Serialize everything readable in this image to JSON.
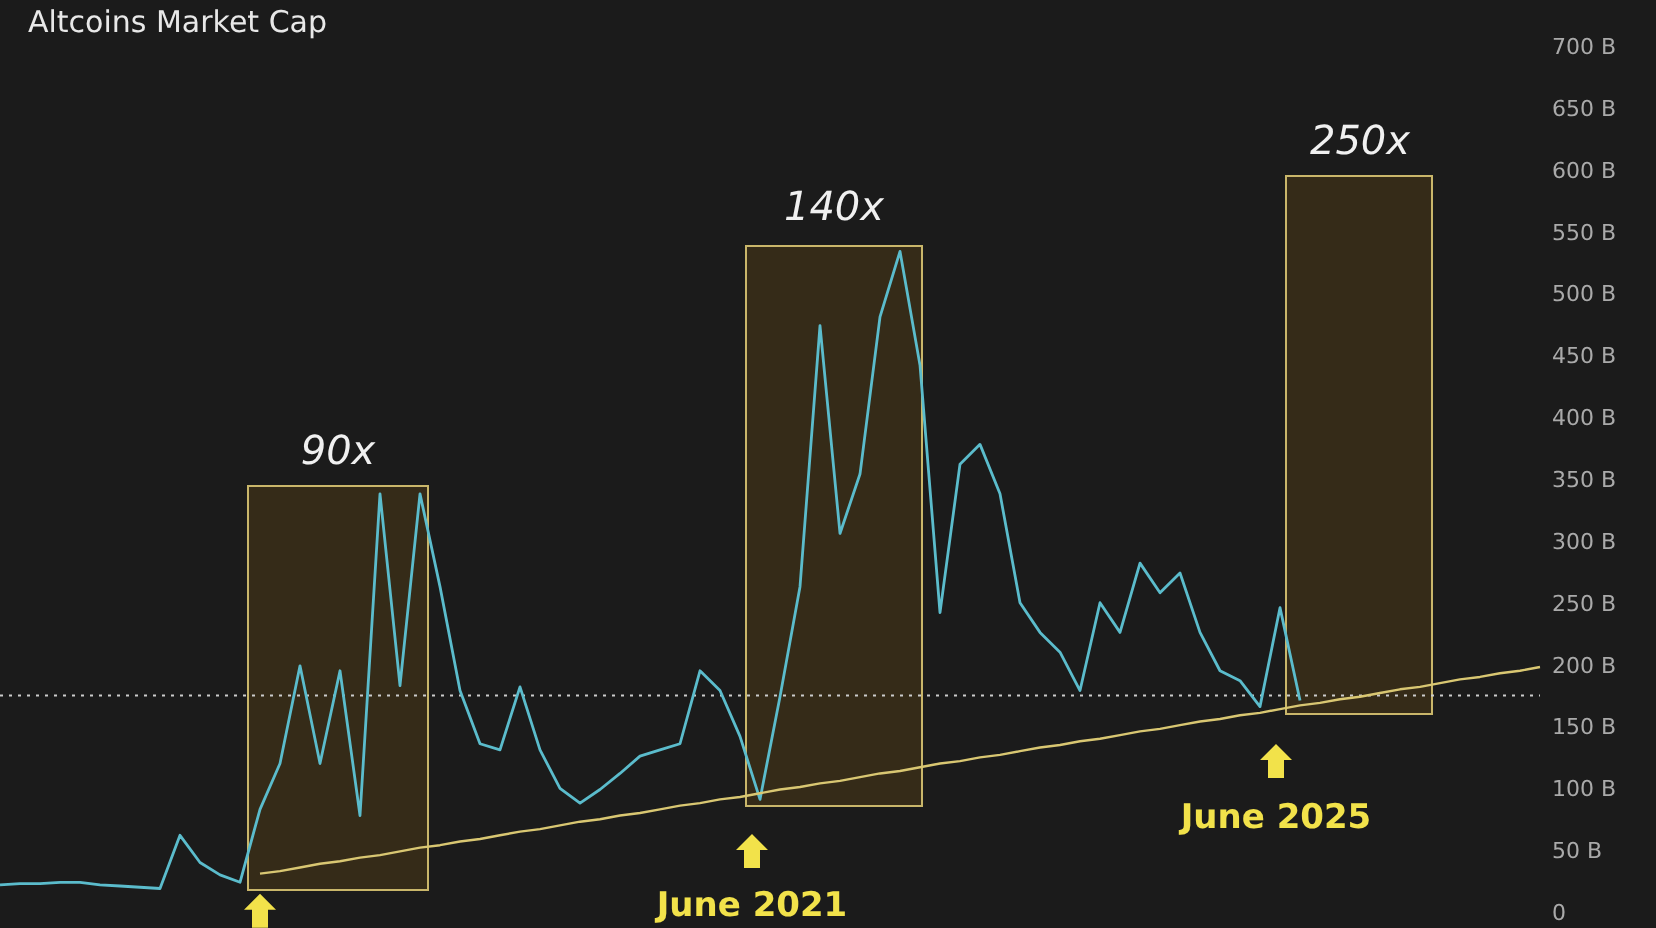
{
  "chart_data": {
    "type": "line",
    "title": "Altcoins Market Cap",
    "categories": [
      null,
      null,
      null,
      null,
      null,
      null,
      null,
      null,
      null,
      null,
      null,
      null,
      null,
      null,
      null,
      null,
      null,
      null,
      null,
      null,
      null,
      null,
      null,
      null,
      null,
      null,
      null,
      null,
      null,
      null,
      null,
      null,
      null,
      null,
      null,
      null,
      null,
      null,
      null,
      null,
      null,
      null,
      null,
      null,
      null,
      null,
      null,
      null,
      null,
      null,
      null,
      null,
      null,
      null,
      null,
      null,
      null,
      null,
      null,
      null,
      null,
      null,
      null,
      null,
      null,
      null,
      null,
      null,
      null,
      null,
      null,
      null,
      null,
      null,
      null,
      null,
      null,
      null
    ],
    "series": [
      {
        "color": "#5bbccc",
        "values": [
          22,
          23,
          23,
          24,
          24,
          22,
          21,
          20,
          19,
          62,
          40,
          30,
          24,
          83,
          120,
          199,
          120,
          195,
          78,
          338,
          183,
          338,
          263,
          179,
          136,
          131,
          182,
          131,
          100,
          88,
          99,
          112,
          126,
          131,
          136,
          195,
          179,
          142,
          91,
          174,
          263,
          474,
          306,
          354,
          481,
          534,
          442,
          242,
          362,
          378,
          338,
          250,
          226,
          210,
          179,
          250,
          226,
          282,
          258,
          274,
          226,
          195,
          187,
          166,
          246,
          171,
          null,
          null,
          null,
          null,
          null,
          null,
          null,
          null,
          null,
          null,
          null,
          null
        ]
      },
      {
        "color": "#d9c772",
        "values": [
          null,
          null,
          null,
          null,
          null,
          null,
          null,
          null,
          null,
          null,
          null,
          null,
          null,
          31,
          33,
          36,
          39,
          41,
          44,
          46,
          49,
          52,
          54,
          57,
          59,
          62,
          65,
          67,
          70,
          73,
          75,
          78,
          80,
          83,
          86,
          88,
          91,
          93,
          96,
          99,
          101,
          104,
          106,
          109,
          112,
          114,
          117,
          120,
          122,
          125,
          127,
          130,
          133,
          135,
          138,
          140,
          143,
          146,
          148,
          151,
          154,
          156,
          159,
          161,
          164,
          167,
          169,
          172,
          174,
          177,
          180,
          182,
          185,
          188,
          190,
          193,
          195,
          198
        ]
      }
    ],
    "ylim": [
      0,
      700
    ],
    "yticks": [
      {
        "value": 0,
        "label": "0"
      },
      {
        "value": 50,
        "label": "50 B"
      },
      {
        "value": 100,
        "label": "100 B"
      },
      {
        "value": 150,
        "label": "150 B"
      },
      {
        "value": 200,
        "label": "200 B"
      },
      {
        "value": 250,
        "label": "250 B"
      },
      {
        "value": 300,
        "label": "300 B"
      },
      {
        "value": 350,
        "label": "350 B"
      },
      {
        "value": 400,
        "label": "400 B"
      },
      {
        "value": 450,
        "label": "450 B"
      },
      {
        "value": 500,
        "label": "500 B"
      },
      {
        "value": 550,
        "label": "550 B"
      },
      {
        "value": 600,
        "label": "600 B"
      },
      {
        "value": 650,
        "label": "650 B"
      },
      {
        "value": 700,
        "label": "700 B"
      }
    ],
    "tick_labels": "y",
    "ref_lines": [
      {
        "axis": "y",
        "value": 175,
        "color": "#cccccc",
        "line_style": "dotted"
      }
    ],
    "annotations": [
      "90x",
      "140x",
      "250x",
      "June 2021",
      "June 2025"
    ]
  }
}
